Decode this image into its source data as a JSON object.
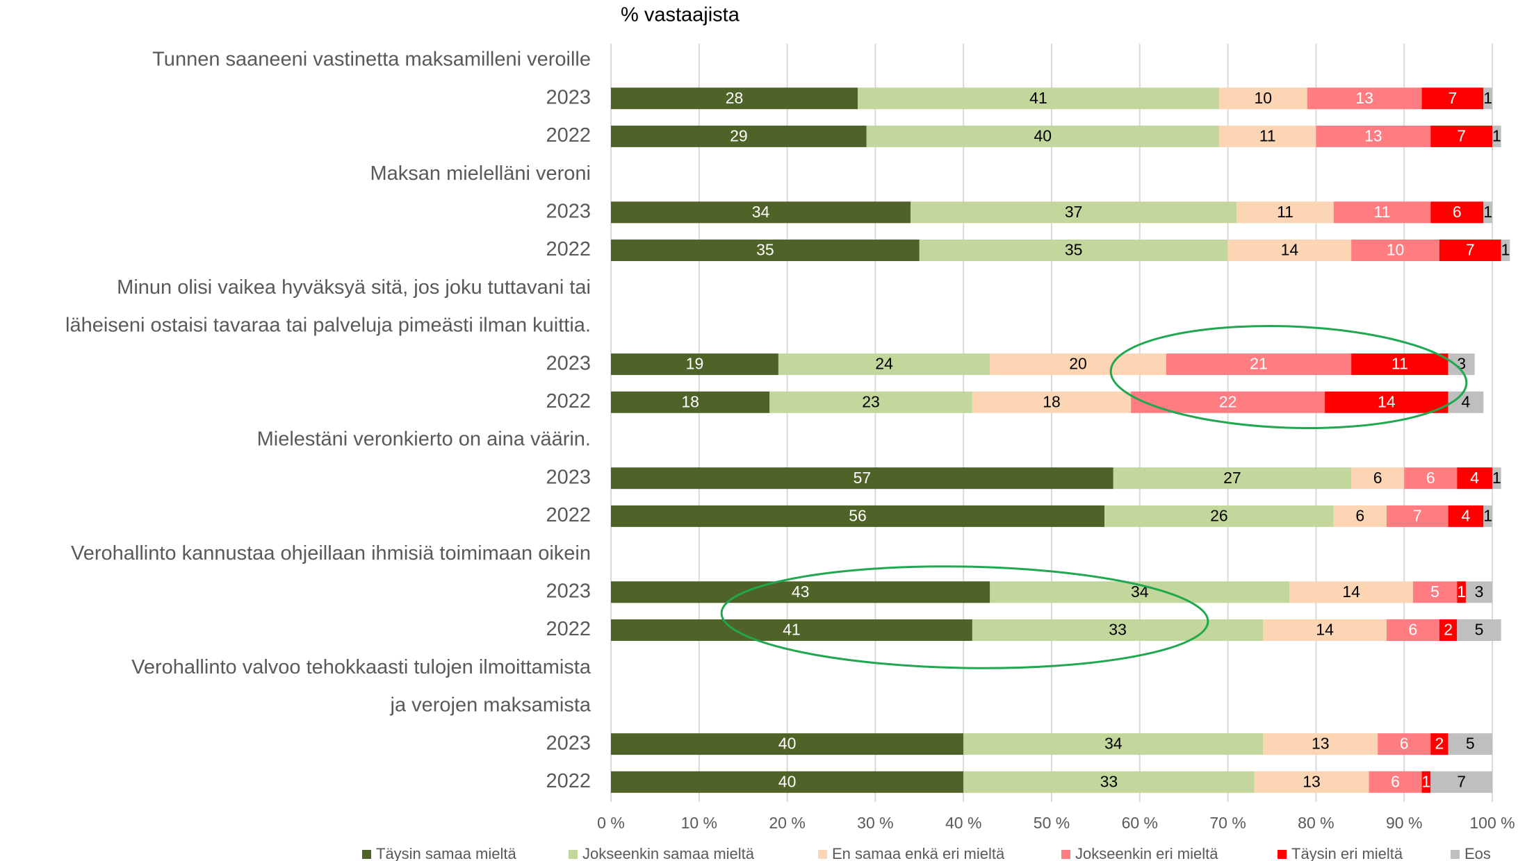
{
  "chart_data": {
    "type": "stacked_barh",
    "title": "% vastaajista",
    "categories": [
      "Tunnen saaneeni vastinetta maksamilleni veroille",
      "2023",
      "2022",
      "Maksan mielelläni veroni",
      "2023",
      "2022",
      "Minun olisi vaikea hyväksyä sitä, jos joku tuttavani tai",
      "läheiseni ostaisi tavaraa tai palveluja pimeästi ilman kuittia.",
      "2023",
      "2022",
      "Mielestäni veronkierto on aina väärin.",
      "2023",
      "2022",
      "Verohallinto kannustaa ohjeillaan ihmisiä toimimaan oikein",
      "2023",
      "2022",
      "Verohallinto valvoo tehokkaasti tulojen ilmoittamista",
      "ja verojen maksamista",
      "2023",
      "2022"
    ],
    "series": [
      {
        "name": "Täysin samaa mieltä",
        "color": "#4f6228",
        "values": [
          null,
          28,
          29,
          null,
          34,
          35,
          null,
          null,
          19,
          18,
          null,
          57,
          56,
          null,
          43,
          41,
          null,
          null,
          40,
          40
        ]
      },
      {
        "name": "Jokseenkin samaa mieltä",
        "color": "#c3d69b",
        "values": [
          null,
          41,
          40,
          null,
          37,
          35,
          null,
          null,
          24,
          23,
          null,
          27,
          26,
          null,
          34,
          33,
          null,
          null,
          34,
          33
        ]
      },
      {
        "name": "En samaa enkä eri mieltä",
        "color": "#fcd5b5",
        "values": [
          null,
          10,
          11,
          null,
          11,
          14,
          null,
          null,
          20,
          18,
          null,
          6,
          6,
          null,
          14,
          14,
          null,
          null,
          13,
          13
        ]
      },
      {
        "name": "Jokseenkin eri mieltä",
        "color": "#ff7c80",
        "values": [
          null,
          13,
          13,
          null,
          11,
          10,
          null,
          null,
          21,
          22,
          null,
          6,
          7,
          null,
          5,
          6,
          null,
          null,
          6,
          6
        ]
      },
      {
        "name": "Täysin eri mieltä",
        "color": "#ff0000",
        "values": [
          null,
          7,
          7,
          null,
          6,
          7,
          null,
          null,
          11,
          14,
          null,
          4,
          4,
          null,
          1,
          2,
          null,
          null,
          2,
          1
        ]
      },
      {
        "name": "Eos",
        "color": "#bfbfbf",
        "values": [
          null,
          1,
          1,
          null,
          1,
          1,
          null,
          null,
          3,
          4,
          null,
          1,
          1,
          null,
          3,
          5,
          null,
          null,
          5,
          7
        ]
      }
    ],
    "xlim": [
      0,
      100
    ],
    "xticks": [
      {
        "value": 0,
        "label": "0 %"
      },
      {
        "value": 10,
        "label": "10 %"
      },
      {
        "value": 20,
        "label": "20 %"
      },
      {
        "value": 30,
        "label": "30 %"
      },
      {
        "value": 40,
        "label": "40 %"
      },
      {
        "value": 50,
        "label": "50 %"
      },
      {
        "value": 60,
        "label": "60 %"
      },
      {
        "value": 70,
        "label": "70 %"
      },
      {
        "value": 80,
        "label": "80 %"
      },
      {
        "value": 90,
        "label": "90 %"
      },
      {
        "value": 100,
        "label": "100 %"
      }
    ],
    "grid": true,
    "legend": "bottom"
  }
}
